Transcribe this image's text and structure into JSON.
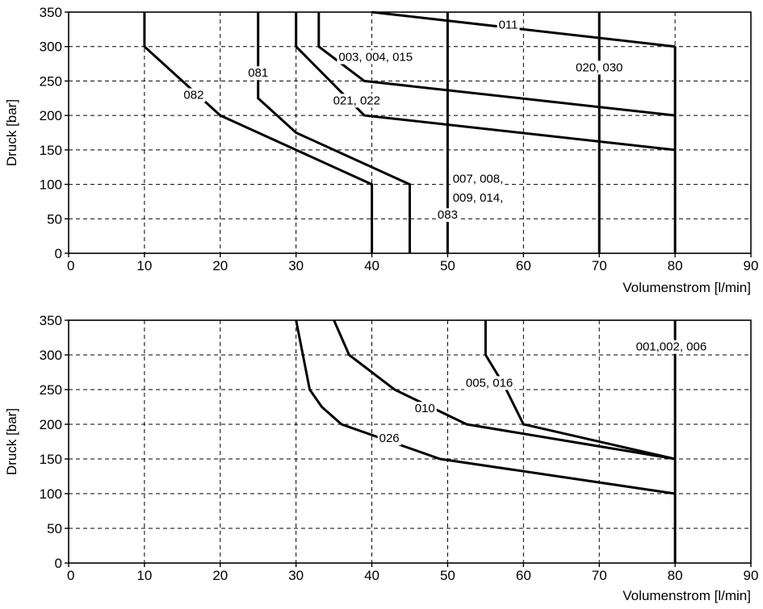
{
  "chart_data": [
    {
      "type": "line",
      "xlabel": "Volumenstrom [l/min]",
      "ylabel": "Druck [bar]",
      "xlim": [
        0,
        90
      ],
      "ylim": [
        0,
        350
      ],
      "xticks": [
        0,
        10,
        20,
        30,
        40,
        50,
        60,
        70,
        80,
        90
      ],
      "yticks": [
        0,
        50,
        100,
        150,
        200,
        250,
        300,
        350
      ],
      "grid": true,
      "series": [
        {
          "name": "011",
          "points": [
            [
              40,
              350
            ],
            [
              80,
              300
            ]
          ]
        },
        {
          "name": "020, 030",
          "points": [
            [
              70,
              350
            ],
            [
              70,
              0
            ]
          ]
        },
        {
          "name": "007, 008, 009, 014, 083",
          "points": [
            [
              50,
              350
            ],
            [
              50,
              0
            ]
          ]
        },
        {
          "name": "003, 004, 015",
          "points": [
            [
              33,
              350
            ],
            [
              33,
              300
            ],
            [
              39,
              250
            ],
            [
              80,
              200
            ]
          ]
        },
        {
          "name": "021, 022",
          "points": [
            [
              30,
              350
            ],
            [
              30,
              300
            ],
            [
              39,
              200
            ],
            [
              80,
              150
            ]
          ]
        },
        {
          "name": "081",
          "points": [
            [
              25,
              350
            ],
            [
              25,
              225
            ],
            [
              30,
              175
            ],
            [
              45,
              100
            ],
            [
              45,
              0
            ]
          ]
        },
        {
          "name": "082",
          "points": [
            [
              10,
              350
            ],
            [
              10,
              300
            ],
            [
              20,
              200
            ],
            [
              40,
              100
            ],
            [
              40,
              0
            ]
          ]
        },
        {
          "name": "",
          "points": [
            [
              80,
              300
            ],
            [
              80,
              0
            ]
          ]
        }
      ],
      "annotations": [
        {
          "text": "011",
          "x": 58,
          "y": 332
        },
        {
          "text": "020, 030",
          "x": 70,
          "y": 270
        },
        {
          "text": "003, 004, 015",
          "x": 40.5,
          "y": 285
        },
        {
          "text": "081",
          "x": 25,
          "y": 262
        },
        {
          "text": "082",
          "x": 16.5,
          "y": 230
        },
        {
          "text": "021, 022",
          "x": 38,
          "y": 222
        },
        {
          "text": "007, 008,",
          "x": 54,
          "y": 108
        },
        {
          "text": "009, 014,",
          "x": 54,
          "y": 81
        },
        {
          "text": "083",
          "x": 50,
          "y": 56
        }
      ]
    },
    {
      "type": "line",
      "xlabel": "Volumenstrom [l/min]",
      "ylabel": "Druck [bar]",
      "xlim": [
        0,
        90
      ],
      "ylim": [
        0,
        350
      ],
      "xticks": [
        0,
        10,
        20,
        30,
        40,
        50,
        60,
        70,
        80,
        90
      ],
      "yticks": [
        0,
        50,
        100,
        150,
        200,
        250,
        300,
        350
      ],
      "grid": true,
      "series": [
        {
          "name": "001,002, 006",
          "points": [
            [
              80,
              350
            ],
            [
              80,
              0
            ]
          ]
        },
        {
          "name": "005, 016",
          "points": [
            [
              55,
              350
            ],
            [
              55,
              300
            ],
            [
              57.5,
              255
            ],
            [
              60,
              200
            ],
            [
              80,
              150
            ]
          ]
        },
        {
          "name": "010",
          "points": [
            [
              35,
              350
            ],
            [
              37,
              300
            ],
            [
              43,
              250
            ],
            [
              52.5,
              200
            ],
            [
              80,
              150
            ]
          ]
        },
        {
          "name": "026",
          "points": [
            [
              30,
              350
            ],
            [
              31.8,
              250
            ],
            [
              33.4,
              225
            ],
            [
              36,
              200
            ],
            [
              49,
              150
            ],
            [
              80,
              100
            ]
          ]
        }
      ],
      "annotations": [
        {
          "text": "001,002, 006",
          "x": 79.5,
          "y": 312
        },
        {
          "text": "005, 016",
          "x": 55.5,
          "y": 260
        },
        {
          "text": "010",
          "x": 47,
          "y": 223
        },
        {
          "text": "026",
          "x": 42.3,
          "y": 180
        }
      ]
    }
  ]
}
